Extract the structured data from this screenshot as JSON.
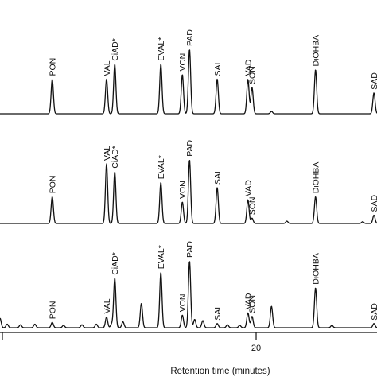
{
  "chart_data": {
    "type": "line",
    "xlabel": "Retention time (minutes)",
    "x_ticks": [
      {
        "value": 20,
        "label": "20"
      }
    ],
    "xlim": [
      7.5,
      25.9
    ],
    "ylim": [
      0,
      1.15
    ],
    "grid": false,
    "traces": [
      {
        "baseline": [],
        "peaks": [
          {
            "name": "PON",
            "t": 10.05,
            "h": 0.58
          },
          {
            "name": "VAL",
            "t": 12.7,
            "h": 0.58
          },
          {
            "name": "CiAD*",
            "t": 13.1,
            "h": 0.83
          },
          {
            "name": "EVAL*",
            "t": 15.35,
            "h": 0.83
          },
          {
            "name": "VON",
            "t": 16.4,
            "h": 0.66
          },
          {
            "name": "PAD",
            "t": 16.75,
            "h": 1.08
          },
          {
            "name": "SAL",
            "t": 18.1,
            "h": 0.58
          },
          {
            "name": "VAD",
            "t": 19.6,
            "h": 0.58
          },
          {
            "name": "SON",
            "t": 19.8,
            "h": 0.44
          },
          {
            "name": "",
            "t": 20.75,
            "h": 0.04
          },
          {
            "name": "DiOHBA",
            "t": 22.9,
            "h": 0.74
          },
          {
            "name": "SAD",
            "t": 25.75,
            "h": 0.35
          }
        ]
      },
      {
        "baseline": [],
        "peaks": [
          {
            "name": "PON",
            "t": 10.05,
            "h": 0.45
          },
          {
            "name": "VAL",
            "t": 12.7,
            "h": 1.0
          },
          {
            "name": "CiAD*",
            "t": 13.1,
            "h": 0.87
          },
          {
            "name": "EVAL*",
            "t": 15.35,
            "h": 0.69
          },
          {
            "name": "VON",
            "t": 16.4,
            "h": 0.36
          },
          {
            "name": "PAD",
            "t": 16.75,
            "h": 1.07
          },
          {
            "name": "SAL",
            "t": 18.1,
            "h": 0.6
          },
          {
            "name": "VAD",
            "t": 19.6,
            "h": 0.4
          },
          {
            "name": "SON",
            "t": 19.8,
            "h": 0.09
          },
          {
            "name": "",
            "t": 21.5,
            "h": 0.04
          },
          {
            "name": "DiOHBA",
            "t": 22.9,
            "h": 0.45
          },
          {
            "name": "",
            "t": 25.2,
            "h": 0.03
          },
          {
            "name": "SAD",
            "t": 25.75,
            "h": 0.14
          }
        ]
      },
      {
        "baseline": [],
        "peaks": [
          {
            "name": "",
            "t": 7.5,
            "h": 0.16
          },
          {
            "name": "",
            "t": 7.85,
            "h": 0.06
          },
          {
            "name": "",
            "t": 8.5,
            "h": 0.05
          },
          {
            "name": "",
            "t": 9.2,
            "h": 0.06
          },
          {
            "name": "PON",
            "t": 10.05,
            "h": 0.09
          },
          {
            "name": "",
            "t": 10.6,
            "h": 0.04
          },
          {
            "name": "",
            "t": 11.5,
            "h": 0.05
          },
          {
            "name": "",
            "t": 12.2,
            "h": 0.06
          },
          {
            "name": "VAL",
            "t": 12.7,
            "h": 0.18
          },
          {
            "name": "",
            "t": 12.95,
            "h": 0.06
          },
          {
            "name": "CiAD*",
            "t": 13.1,
            "h": 0.83
          },
          {
            "name": "",
            "t": 13.5,
            "h": 0.1
          },
          {
            "name": "",
            "t": 14.4,
            "h": 0.41
          },
          {
            "name": "EVAL*",
            "t": 15.35,
            "h": 0.93
          },
          {
            "name": "VON",
            "t": 16.4,
            "h": 0.21
          },
          {
            "name": "PAD",
            "t": 16.75,
            "h": 1.12
          },
          {
            "name": "",
            "t": 17.0,
            "h": 0.14
          },
          {
            "name": "",
            "t": 17.4,
            "h": 0.12
          },
          {
            "name": "SAL",
            "t": 18.1,
            "h": 0.07
          },
          {
            "name": "",
            "t": 18.6,
            "h": 0.05
          },
          {
            "name": "",
            "t": 19.2,
            "h": 0.04
          },
          {
            "name": "VAD",
            "t": 19.6,
            "h": 0.25
          },
          {
            "name": "SON",
            "t": 19.8,
            "h": 0.19
          },
          {
            "name": "",
            "t": 20.75,
            "h": 0.36
          },
          {
            "name": "DiOHBA",
            "t": 22.9,
            "h": 0.67
          },
          {
            "name": "",
            "t": 23.7,
            "h": 0.04
          },
          {
            "name": "SAD",
            "t": 25.75,
            "h": 0.07
          }
        ]
      }
    ]
  }
}
